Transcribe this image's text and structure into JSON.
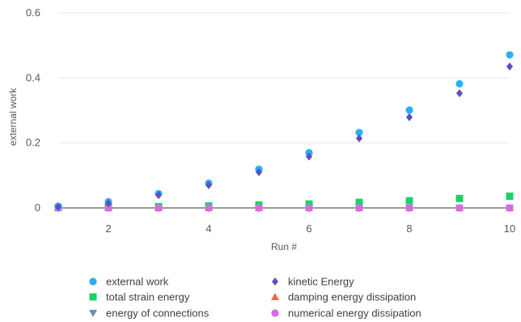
{
  "chart_data": {
    "type": "scatter",
    "title": "",
    "xlabel": "Run #",
    "ylabel": "external work",
    "xlim": [
      1,
      10
    ],
    "ylim": [
      -0.02,
      0.6
    ],
    "x_ticks": [
      2,
      4,
      6,
      8,
      10
    ],
    "y_ticks": [
      0,
      0.2,
      0.4,
      0.6
    ],
    "y_tick_labels": [
      "0",
      "0.2",
      "0.4",
      "0.6"
    ],
    "grid": "horizontal",
    "legend_position": "bottom",
    "x": [
      1,
      2,
      3,
      4,
      5,
      6,
      7,
      8,
      9,
      10
    ],
    "series": [
      {
        "name": "external work",
        "marker": "circle",
        "color": "#29b0f0",
        "values": [
          0.005,
          0.019,
          0.044,
          0.076,
          0.119,
          0.17,
          0.232,
          0.301,
          0.382,
          0.471
        ]
      },
      {
        "name": "kinetic Energy",
        "marker": "diamond",
        "color": "#5b4fc4",
        "values": [
          0.003,
          0.014,
          0.039,
          0.07,
          0.11,
          0.158,
          0.214,
          0.279,
          0.353,
          0.435
        ]
      },
      {
        "name": "total strain energy",
        "marker": "square",
        "color": "#1ed06a",
        "values": [
          0.001,
          0.002,
          0.004,
          0.006,
          0.009,
          0.012,
          0.017,
          0.022,
          0.029,
          0.036
        ]
      },
      {
        "name": "damping energy dissipation",
        "marker": "triangle",
        "color": "#f06a3c",
        "values": [
          0,
          0,
          0,
          0,
          0,
          0,
          0,
          0,
          0,
          0
        ]
      },
      {
        "name": "energy of connections",
        "marker": "triangle-down",
        "color": "#6f8fb0",
        "values": [
          0,
          0,
          0,
          0,
          0,
          0,
          0,
          0,
          0,
          0
        ]
      },
      {
        "name": "numerical energy dissipation",
        "marker": "circle",
        "color": "#d96ae6",
        "values": [
          0,
          0,
          0,
          0,
          0,
          0,
          0,
          0,
          0,
          0
        ]
      }
    ],
    "legend_order": [
      0,
      1,
      2,
      3,
      4,
      5
    ]
  }
}
